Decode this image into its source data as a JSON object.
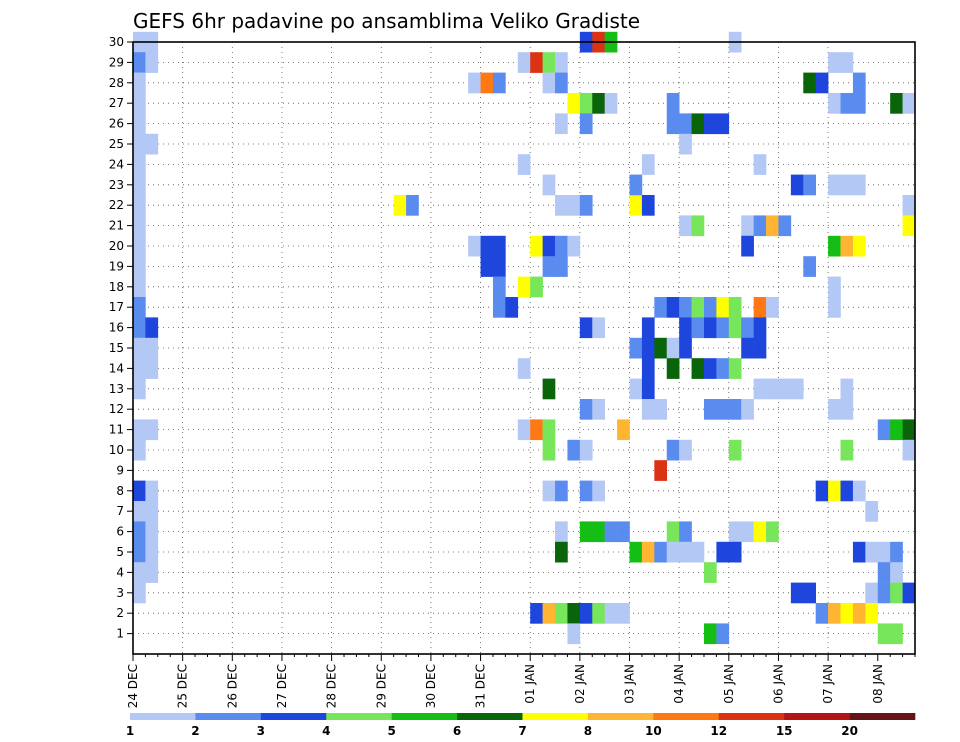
{
  "chart_data": {
    "type": "heatmap",
    "title": "GEFS 6hr padavine po ansamblima Veliko Gradiste",
    "x_tick_labels": [
      "24 DEC",
      "25 DEC",
      "26 DEC",
      "27 DEC",
      "28 DEC",
      "29 DEC",
      "30 DEC",
      "31 DEC",
      "01 JAN",
      "02 JAN",
      "03 JAN",
      "04 JAN",
      "05 JAN",
      "06 JAN",
      "07 JAN",
      "08 JAN"
    ],
    "y_tick_labels": [
      "1",
      "2",
      "3",
      "4",
      "5",
      "6",
      "7",
      "8",
      "9",
      "10",
      "11",
      "12",
      "13",
      "14",
      "15",
      "16",
      "17",
      "18",
      "19",
      "20",
      "21",
      "22",
      "23",
      "24",
      "25",
      "26",
      "27",
      "28",
      "29",
      "30"
    ],
    "x_step_hours": 6,
    "grid": "dotted",
    "colorbar": {
      "labels": [
        "1",
        "2",
        "3",
        "4",
        "5",
        "6",
        "7",
        "8",
        "10",
        "12",
        "15",
        "20"
      ],
      "colors": [
        "#b4c8f5",
        "#5a8cf0",
        "#1e46dc",
        "#78e65a",
        "#14be14",
        "#0a640a",
        "#ffff00",
        "#ffb432",
        "#ff7814",
        "#dc3214",
        "#b41414",
        "#641414"
      ]
    },
    "cells": [
      [
        0,
        30,
        1
      ],
      [
        0,
        29,
        2
      ],
      [
        0,
        28,
        1
      ],
      [
        0,
        27,
        1
      ],
      [
        0,
        26,
        1
      ],
      [
        0,
        25,
        1
      ],
      [
        0,
        24,
        1
      ],
      [
        0,
        23,
        1
      ],
      [
        0,
        22,
        1
      ],
      [
        0,
        21,
        1
      ],
      [
        0,
        20,
        1
      ],
      [
        0,
        19,
        1
      ],
      [
        0,
        18,
        1
      ],
      [
        0,
        17,
        2
      ],
      [
        0,
        16,
        2
      ],
      [
        0,
        15,
        1
      ],
      [
        0,
        14,
        1
      ],
      [
        0,
        13,
        1
      ],
      [
        0,
        11,
        1
      ],
      [
        0,
        10,
        1
      ],
      [
        0,
        8,
        3
      ],
      [
        0,
        7,
        1
      ],
      [
        0,
        6,
        2
      ],
      [
        0,
        5,
        2
      ],
      [
        0,
        4,
        1
      ],
      [
        0,
        3,
        1
      ],
      [
        1,
        30,
        1
      ],
      [
        1,
        29,
        1
      ],
      [
        1,
        25,
        1
      ],
      [
        1,
        16,
        3
      ],
      [
        1,
        15,
        1
      ],
      [
        1,
        14,
        1
      ],
      [
        1,
        11,
        1
      ],
      [
        1,
        8,
        1
      ],
      [
        1,
        7,
        1
      ],
      [
        1,
        6,
        1
      ],
      [
        1,
        5,
        1
      ],
      [
        1,
        4,
        1
      ],
      [
        21,
        22,
        7
      ],
      [
        22,
        22,
        2
      ],
      [
        27,
        20,
        1
      ],
      [
        27,
        28,
        1
      ],
      [
        28,
        28,
        9
      ],
      [
        28,
        20,
        3
      ],
      [
        28,
        19,
        3
      ],
      [
        29,
        28,
        2
      ],
      [
        29,
        20,
        3
      ],
      [
        29,
        19,
        3
      ],
      [
        29,
        18,
        2
      ],
      [
        29,
        17,
        2
      ],
      [
        30,
        17,
        3
      ],
      [
        31,
        29,
        1
      ],
      [
        31,
        24,
        1
      ],
      [
        31,
        18,
        7
      ],
      [
        31,
        14,
        1
      ],
      [
        31,
        11,
        1
      ],
      [
        32,
        29,
        10
      ],
      [
        32,
        20,
        7
      ],
      [
        32,
        18,
        4
      ],
      [
        32,
        11,
        9
      ],
      [
        32,
        2,
        3
      ],
      [
        33,
        29,
        4
      ],
      [
        33,
        28,
        1
      ],
      [
        33,
        23,
        1
      ],
      [
        33,
        20,
        3
      ],
      [
        33,
        19,
        2
      ],
      [
        33,
        13,
        6
      ],
      [
        33,
        11,
        4
      ],
      [
        33,
        10,
        4
      ],
      [
        33,
        8,
        1
      ],
      [
        33,
        2,
        8
      ],
      [
        34,
        29,
        1
      ],
      [
        34,
        28,
        2
      ],
      [
        34,
        26,
        1
      ],
      [
        34,
        22,
        1
      ],
      [
        34,
        20,
        2
      ],
      [
        34,
        19,
        2
      ],
      [
        34,
        8,
        2
      ],
      [
        34,
        6,
        1
      ],
      [
        34,
        5,
        6
      ],
      [
        34,
        2,
        4
      ],
      [
        35,
        27,
        7
      ],
      [
        35,
        22,
        1
      ],
      [
        35,
        20,
        1
      ],
      [
        35,
        10,
        2
      ],
      [
        35,
        2,
        6
      ],
      [
        35,
        1,
        1
      ],
      [
        36,
        27,
        4
      ],
      [
        36,
        26,
        2
      ],
      [
        36,
        22,
        2
      ],
      [
        36,
        30,
        3
      ],
      [
        36,
        16,
        3
      ],
      [
        36,
        12,
        2
      ],
      [
        36,
        10,
        1
      ],
      [
        36,
        8,
        2
      ],
      [
        36,
        6,
        5
      ],
      [
        36,
        2,
        3
      ],
      [
        37,
        30,
        10
      ],
      [
        37,
        27,
        6
      ],
      [
        37,
        16,
        1
      ],
      [
        37,
        12,
        1
      ],
      [
        37,
        8,
        1
      ],
      [
        37,
        6,
        5
      ],
      [
        37,
        2,
        4
      ],
      [
        38,
        30,
        5
      ],
      [
        38,
        27,
        1
      ],
      [
        38,
        6,
        2
      ],
      [
        38,
        2,
        1
      ],
      [
        39,
        11,
        8
      ],
      [
        39,
        6,
        2
      ],
      [
        39,
        2,
        1
      ],
      [
        40,
        22,
        7
      ],
      [
        40,
        23,
        2
      ],
      [
        40,
        15,
        2
      ],
      [
        40,
        13,
        1
      ],
      [
        40,
        5,
        5
      ],
      [
        41,
        24,
        1
      ],
      [
        41,
        22,
        3
      ],
      [
        41,
        16,
        3
      ],
      [
        41,
        15,
        3
      ],
      [
        41,
        14,
        3
      ],
      [
        41,
        13,
        3
      ],
      [
        41,
        12,
        1
      ],
      [
        41,
        5,
        8
      ],
      [
        42,
        17,
        2
      ],
      [
        42,
        15,
        6
      ],
      [
        42,
        12,
        1
      ],
      [
        42,
        9,
        10
      ],
      [
        42,
        5,
        2
      ],
      [
        43,
        27,
        2
      ],
      [
        43,
        26,
        2
      ],
      [
        43,
        17,
        3
      ],
      [
        43,
        15,
        1
      ],
      [
        43,
        14,
        6
      ],
      [
        43,
        10,
        2
      ],
      [
        43,
        6,
        4
      ],
      [
        43,
        5,
        1
      ],
      [
        44,
        26,
        2
      ],
      [
        44,
        25,
        1
      ],
      [
        44,
        21,
        1
      ],
      [
        44,
        17,
        2
      ],
      [
        44,
        16,
        3
      ],
      [
        44,
        15,
        3
      ],
      [
        44,
        10,
        1
      ],
      [
        44,
        6,
        2
      ],
      [
        44,
        5,
        1
      ],
      [
        45,
        26,
        6
      ],
      [
        45,
        21,
        4
      ],
      [
        45,
        17,
        4
      ],
      [
        45,
        16,
        2
      ],
      [
        45,
        14,
        6
      ],
      [
        45,
        5,
        1
      ],
      [
        46,
        26,
        3
      ],
      [
        46,
        17,
        2
      ],
      [
        46,
        16,
        3
      ],
      [
        46,
        14,
        3
      ],
      [
        46,
        12,
        2
      ],
      [
        46,
        4,
        4
      ],
      [
        46,
        1,
        5
      ],
      [
        47,
        26,
        3
      ],
      [
        47,
        17,
        7
      ],
      [
        47,
        16,
        2
      ],
      [
        47,
        14,
        2
      ],
      [
        47,
        12,
        2
      ],
      [
        47,
        5,
        3
      ],
      [
        47,
        1,
        2
      ],
      [
        48,
        30,
        1
      ],
      [
        48,
        17,
        4
      ],
      [
        48,
        16,
        4
      ],
      [
        48,
        14,
        4
      ],
      [
        48,
        12,
        2
      ],
      [
        48,
        10,
        4
      ],
      [
        48,
        6,
        1
      ],
      [
        48,
        5,
        3
      ],
      [
        49,
        21,
        1
      ],
      [
        49,
        20,
        3
      ],
      [
        49,
        16,
        2
      ],
      [
        49,
        15,
        3
      ],
      [
        49,
        12,
        1
      ],
      [
        49,
        6,
        1
      ],
      [
        50,
        24,
        1
      ],
      [
        50,
        21,
        2
      ],
      [
        50,
        17,
        9
      ],
      [
        50,
        16,
        3
      ],
      [
        50,
        15,
        3
      ],
      [
        50,
        13,
        1
      ],
      [
        50,
        6,
        7
      ],
      [
        51,
        21,
        8
      ],
      [
        51,
        17,
        1
      ],
      [
        51,
        13,
        1
      ],
      [
        51,
        6,
        4
      ],
      [
        52,
        21,
        2
      ],
      [
        52,
        13,
        1
      ],
      [
        53,
        23,
        3
      ],
      [
        53,
        13,
        1
      ],
      [
        53,
        3,
        3
      ],
      [
        54,
        28,
        6
      ],
      [
        54,
        23,
        2
      ],
      [
        54,
        19,
        2
      ],
      [
        54,
        3,
        3
      ],
      [
        55,
        28,
        3
      ],
      [
        55,
        8,
        3
      ],
      [
        55,
        2,
        2
      ],
      [
        56,
        29,
        1
      ],
      [
        56,
        27,
        1
      ],
      [
        56,
        23,
        1
      ],
      [
        56,
        20,
        5
      ],
      [
        56,
        18,
        1
      ],
      [
        56,
        17,
        1
      ],
      [
        56,
        12,
        1
      ],
      [
        56,
        8,
        7
      ],
      [
        56,
        2,
        8
      ],
      [
        57,
        29,
        1
      ],
      [
        57,
        27,
        2
      ],
      [
        57,
        23,
        1
      ],
      [
        57,
        20,
        8
      ],
      [
        57,
        13,
        1
      ],
      [
        57,
        12,
        1
      ],
      [
        57,
        10,
        4
      ],
      [
        57,
        8,
        3
      ],
      [
        57,
        2,
        7
      ],
      [
        58,
        28,
        2
      ],
      [
        58,
        27,
        2
      ],
      [
        58,
        23,
        1
      ],
      [
        58,
        20,
        7
      ],
      [
        58,
        8,
        1
      ],
      [
        58,
        5,
        3
      ],
      [
        58,
        2,
        8
      ],
      [
        59,
        7,
        1
      ],
      [
        59,
        5,
        1
      ],
      [
        59,
        3,
        1
      ],
      [
        59,
        2,
        7
      ],
      [
        60,
        11,
        2
      ],
      [
        60,
        5,
        1
      ],
      [
        60,
        4,
        2
      ],
      [
        60,
        3,
        2
      ],
      [
        60,
        1,
        4
      ],
      [
        61,
        27,
        6
      ],
      [
        61,
        11,
        5
      ],
      [
        61,
        5,
        2
      ],
      [
        61,
        4,
        1
      ],
      [
        61,
        3,
        4
      ],
      [
        61,
        1,
        4
      ],
      [
        62,
        27,
        1
      ],
      [
        62,
        22,
        1
      ],
      [
        62,
        21,
        7
      ],
      [
        62,
        11,
        6
      ],
      [
        62,
        10,
        1
      ],
      [
        62,
        3,
        3
      ]
    ]
  }
}
